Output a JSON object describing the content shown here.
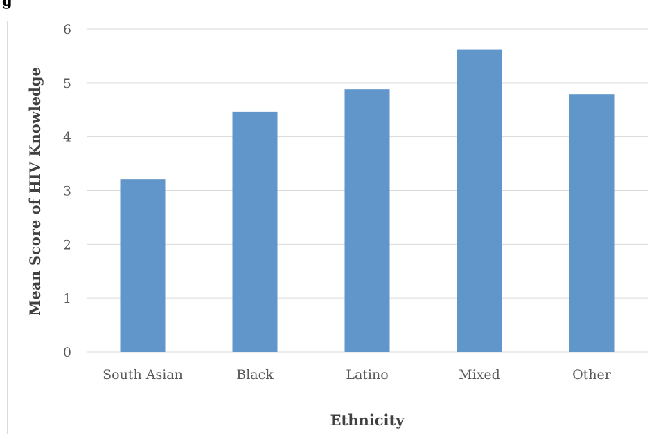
{
  "corner_text": "g",
  "chart_data": {
    "type": "bar",
    "title": "",
    "xlabel": "Ethnicity",
    "ylabel": "Mean Score of HIV Knowledge",
    "categories": [
      "South Asian",
      "Black",
      "Latino",
      "Mixed",
      "Other"
    ],
    "values": [
      3.21,
      4.46,
      4.88,
      5.62,
      4.79
    ],
    "ylim": [
      0,
      6
    ],
    "yticks": [
      "0",
      "1",
      "2",
      "3",
      "4",
      "5",
      "6"
    ],
    "grid": true,
    "legend": "none",
    "bar_color": "#6096c9",
    "grid_color": "#d9d9d9"
  }
}
